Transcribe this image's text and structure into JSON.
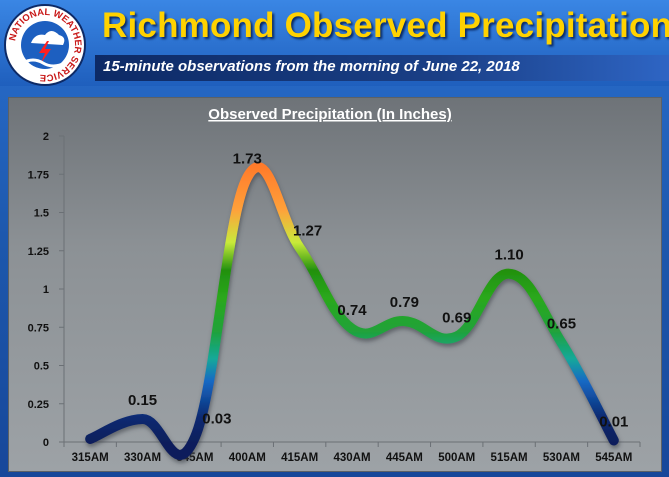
{
  "header": {
    "title": "Richmond Observed Precipitation",
    "subtitle": "15-minute observations from the morning of June 22, 2018",
    "logo_text": "NATIONAL WEATHER SERVICE"
  },
  "colors": {
    "title": "#ffd200",
    "header_bg": "#2a6fcf",
    "plot_bg": "#8c9195",
    "low": "#0b1f5c",
    "mid": "#12a89a",
    "green": "#2aa81c",
    "high": "#ff8a2a"
  },
  "chart_data": {
    "type": "line",
    "title": "Observed Precipitation (In Inches)",
    "xlabel": "",
    "ylabel": "",
    "categories": [
      "315AM",
      "330AM",
      "345AM",
      "400AM",
      "415AM",
      "430AM",
      "445AM",
      "500AM",
      "515AM",
      "530AM",
      "545AM"
    ],
    "values": [
      0.02,
      0.15,
      0.03,
      1.73,
      1.27,
      0.74,
      0.79,
      0.69,
      1.1,
      0.65,
      0.01
    ],
    "data_labels": [
      "",
      "0.15",
      "0.03",
      "1.73",
      "1.27",
      "0.74",
      "0.79",
      "0.69",
      "1.10",
      "0.65",
      "0.01"
    ],
    "ylim": [
      0,
      2
    ],
    "yticks": [
      0,
      0.25,
      0.5,
      0.75,
      1,
      1.25,
      1.5,
      1.75,
      2
    ],
    "ytick_labels": [
      "0",
      "0.25",
      "0.5",
      "0.75",
      "1",
      "1.25",
      "1.5",
      "1.75",
      "2"
    ],
    "grid": false,
    "smooth": true
  }
}
